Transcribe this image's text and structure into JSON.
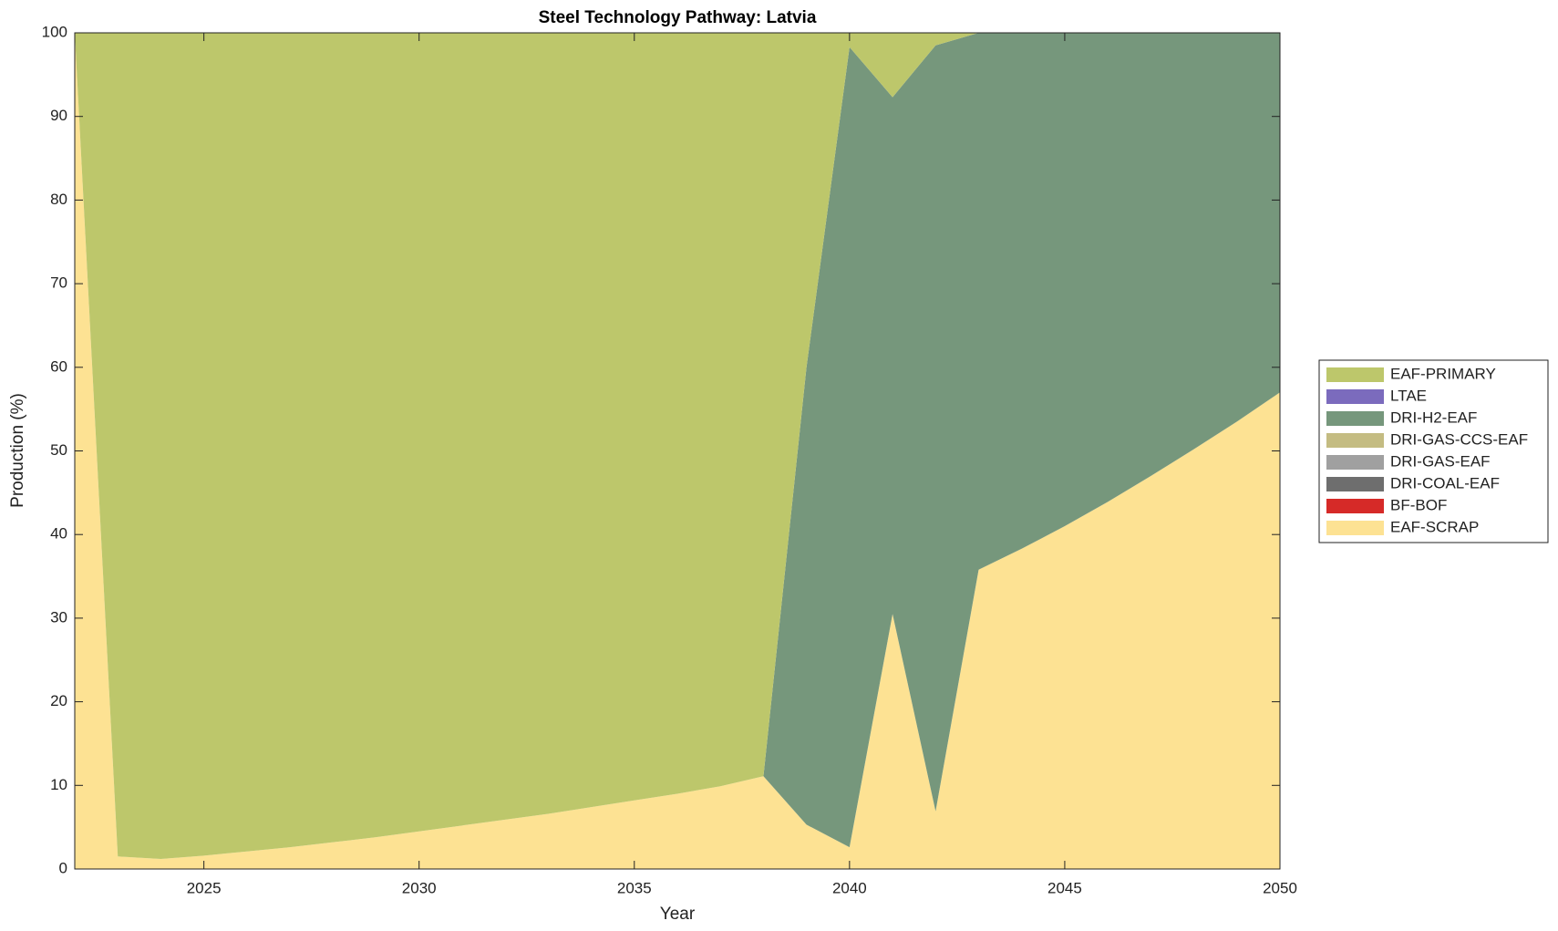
{
  "chart_data": {
    "type": "area",
    "title": "Steel Technology Pathway: Latvia",
    "x_label": "Year",
    "y_label": "Production (%)",
    "x": [
      2022,
      2023,
      2024,
      2025,
      2026,
      2027,
      2028,
      2029,
      2030,
      2031,
      2032,
      2033,
      2034,
      2035,
      2036,
      2037,
      2038,
      2039,
      2040,
      2041,
      2042,
      2043,
      2044,
      2045,
      2046,
      2047,
      2048,
      2049,
      2050
    ],
    "xlim": [
      2022,
      2050
    ],
    "xticks": [
      2025,
      2030,
      2035,
      2040,
      2045,
      2050
    ],
    "ylim": [
      0,
      100
    ],
    "yticks": [
      0,
      10,
      20,
      30,
      40,
      50,
      60,
      70,
      80,
      90,
      100
    ],
    "legend": "right",
    "series": [
      {
        "name": "EAF-SCRAP",
        "color": "#fde293",
        "values": [
          100,
          1.5,
          1.2,
          1.6,
          2.1,
          2.6,
          3.2,
          3.8,
          4.5,
          5.2,
          5.9,
          6.6,
          7.4,
          8.2,
          9.0,
          9.9,
          11.1,
          5.3,
          2.6,
          30.5,
          6.9,
          35.8,
          38.3,
          41.0,
          43.9,
          47.0,
          50.2,
          53.5,
          57.0
        ]
      },
      {
        "name": "BF-BOF",
        "color": "#d62a28",
        "values": [
          0,
          0,
          0,
          0,
          0,
          0,
          0,
          0,
          0,
          0,
          0,
          0,
          0,
          0,
          0,
          0,
          0,
          0,
          0,
          0,
          0,
          0,
          0,
          0,
          0,
          0,
          0,
          0,
          0
        ]
      },
      {
        "name": "DRI-COAL-EAF",
        "color": "#6e6e6e",
        "values": [
          0,
          0,
          0,
          0,
          0,
          0,
          0,
          0,
          0,
          0,
          0,
          0,
          0,
          0,
          0,
          0,
          0,
          0,
          0,
          0,
          0,
          0,
          0,
          0,
          0,
          0,
          0,
          0,
          0
        ]
      },
      {
        "name": "DRI-GAS-EAF",
        "color": "#a0a0a0",
        "values": [
          0,
          0,
          0,
          0,
          0,
          0,
          0,
          0,
          0,
          0,
          0,
          0,
          0,
          0,
          0,
          0,
          0,
          0,
          0,
          0,
          0,
          0,
          0,
          0,
          0,
          0,
          0,
          0,
          0
        ]
      },
      {
        "name": "DRI-GAS-CCS-EAF",
        "color": "#c4bc82",
        "values": [
          0,
          0,
          0,
          0,
          0,
          0,
          0,
          0,
          0,
          0,
          0,
          0,
          0,
          0,
          0,
          0,
          0,
          0,
          0,
          0,
          0,
          0,
          0,
          0,
          0,
          0,
          0,
          0,
          0
        ]
      },
      {
        "name": "DRI-H2-EAF",
        "color": "#76977c",
        "values": [
          0,
          0,
          0,
          0,
          0,
          0,
          0,
          0,
          0,
          0,
          0,
          0,
          0,
          0,
          0,
          0,
          0,
          54.7,
          95.7,
          61.8,
          91.6,
          64.2,
          61.7,
          59.0,
          56.1,
          53.0,
          49.8,
          46.5,
          43.0
        ]
      },
      {
        "name": "LTAE",
        "color": "#7b6bbd",
        "values": [
          0,
          0,
          0,
          0,
          0,
          0,
          0,
          0,
          0,
          0,
          0,
          0,
          0,
          0,
          0,
          0,
          0,
          0,
          0,
          0,
          0,
          0,
          0,
          0,
          0,
          0,
          0,
          0,
          0
        ]
      },
      {
        "name": "EAF-PRIMARY",
        "color": "#bdc76b",
        "values": [
          0,
          98.5,
          98.8,
          98.4,
          97.9,
          97.4,
          96.8,
          96.2,
          95.5,
          94.8,
          94.1,
          93.4,
          92.6,
          91.8,
          91.0,
          90.1,
          88.9,
          40.0,
          1.7,
          7.7,
          1.5,
          0,
          0,
          0,
          0,
          0,
          0,
          0,
          0
        ]
      }
    ]
  }
}
